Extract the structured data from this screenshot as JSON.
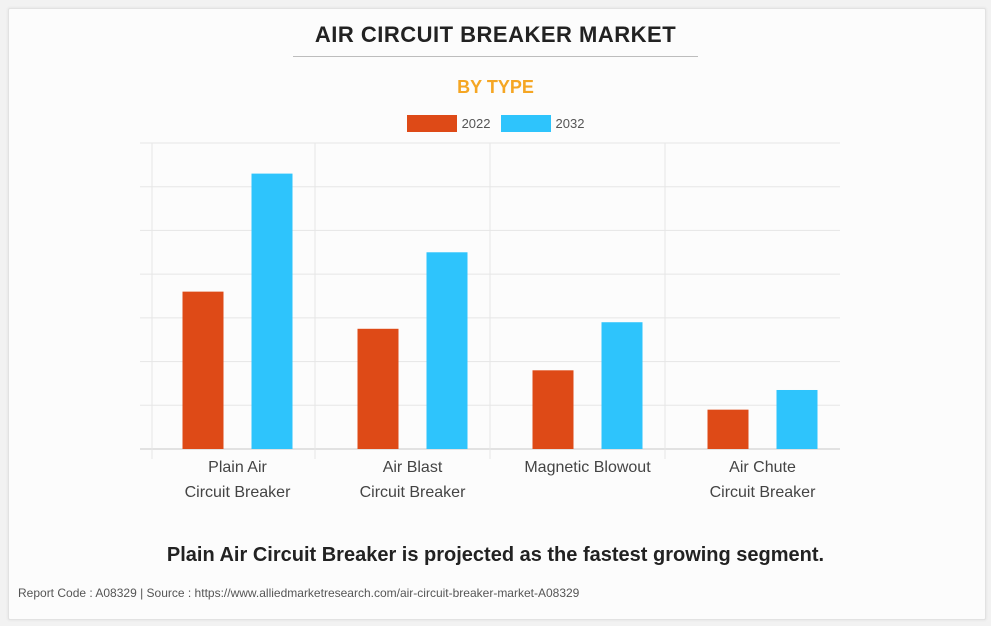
{
  "header": {
    "title": "AIR CIRCUIT BREAKER MARKET",
    "subtitle": "BY TYPE"
  },
  "colors": {
    "series_2022": "#de4a17",
    "series_2032": "#2ec4fc",
    "subtitle": "#f5a623"
  },
  "chart_data": {
    "type": "bar",
    "categories": [
      [
        "Plain Air",
        "Circuit Breaker"
      ],
      [
        "Air Blast",
        "Circuit Breaker"
      ],
      [
        "Magnetic Blowout"
      ],
      [
        "Air Chute",
        "Circuit Breaker"
      ]
    ],
    "series": [
      {
        "name": "2022",
        "values": [
          3.6,
          2.75,
          1.8,
          0.9
        ]
      },
      {
        "name": "2032",
        "values": [
          6.3,
          4.5,
          2.9,
          1.35
        ]
      }
    ],
    "ylim": [
      0,
      7
    ],
    "grid": true,
    "legend": "top-center"
  },
  "headline": "Plain Air Circuit Breaker is projected as the fastest growing segment.",
  "footer": "Report Code : A08329  |  Source : https://www.alliedmarketresearch.com/air-circuit-breaker-market-A08329"
}
